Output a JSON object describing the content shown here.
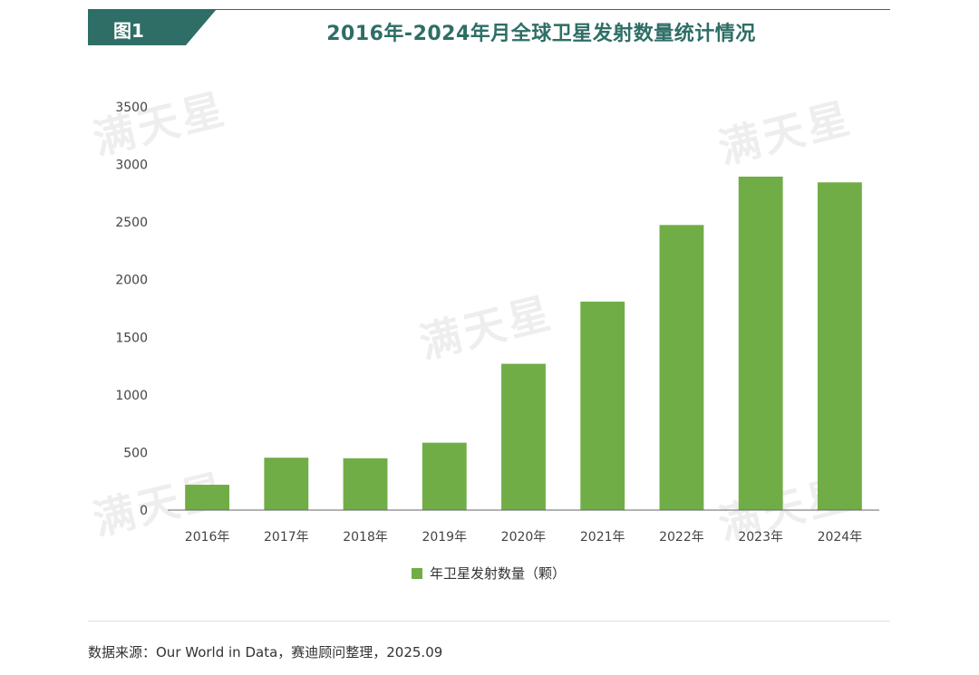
{
  "header": {
    "figure_label": "图1",
    "title": "2016年-2024年月全球卫星发射数量统计情况"
  },
  "chart_data": {
    "type": "bar",
    "title": "2016年-2024年月全球卫星发射数量统计情况",
    "categories": [
      "2016年",
      "2017年",
      "2018年",
      "2019年",
      "2020年",
      "2021年",
      "2022年",
      "2023年",
      "2024年"
    ],
    "series": [
      {
        "name": "年卫星发射数量（颗）",
        "values": [
          220,
          455,
          450,
          585,
          1270,
          1810,
          2475,
          2895,
          2845
        ]
      }
    ],
    "ylim": [
      0,
      3500
    ],
    "yticks": [
      0,
      500,
      1000,
      1500,
      2000,
      2500,
      3000,
      3500
    ],
    "grid": false,
    "legend": "bottom-center",
    "bar_color": "#70ad47"
  },
  "watermark": {
    "text": "满天星"
  },
  "footer": {
    "source": "数据来源：Our World in Data，赛迪顾问整理，2025.09"
  },
  "colors": {
    "accent": "#2e6e66",
    "bar": "#70ad47"
  }
}
